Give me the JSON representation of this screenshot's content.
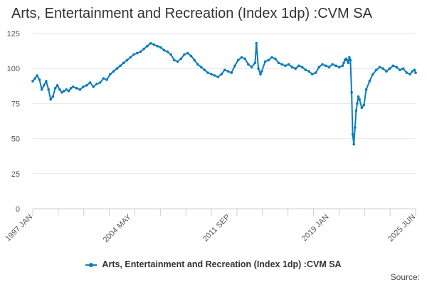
{
  "chart_data": {
    "type": "line",
    "title": "Arts, Entertainment and Recreation (Index 1dp) :CVM SA",
    "xlabel": "",
    "ylabel": "",
    "ylim": [
      0,
      125
    ],
    "y_ticks": [
      0,
      25,
      50,
      75,
      100,
      125
    ],
    "x_ticks": [
      {
        "label": "1997 JAN",
        "t": 1997.0
      },
      {
        "label": "2004 MAY",
        "t": 2004.333
      },
      {
        "label": "2011 SEP",
        "t": 2011.667
      },
      {
        "label": "2019 JAN",
        "t": 2019.0
      },
      {
        "label": "2025 JUN",
        "t": 2025.417
      }
    ],
    "xlim": [
      1997.0,
      2025.417
    ],
    "grid": true,
    "legend": "bottom-center",
    "series": [
      {
        "name": "Arts, Entertainment and Recreation (Index 1dp) :CVM SA",
        "color": "#0a7cbe",
        "x": [
          1997.0,
          1997.17,
          1997.33,
          1997.5,
          1997.67,
          1997.83,
          1998.0,
          1998.17,
          1998.33,
          1998.5,
          1998.67,
          1998.83,
          1999.0,
          1999.17,
          1999.33,
          1999.5,
          1999.67,
          1999.83,
          2000.0,
          2000.25,
          2000.5,
          2000.75,
          2001.0,
          2001.25,
          2001.5,
          2001.75,
          2002.0,
          2002.25,
          2002.5,
          2002.75,
          2003.0,
          2003.25,
          2003.5,
          2003.75,
          2004.0,
          2004.25,
          2004.5,
          2004.75,
          2005.0,
          2005.25,
          2005.5,
          2005.75,
          2006.0,
          2006.25,
          2006.5,
          2006.75,
          2007.0,
          2007.25,
          2007.5,
          2007.75,
          2008.0,
          2008.25,
          2008.5,
          2008.75,
          2009.0,
          2009.25,
          2009.5,
          2009.75,
          2010.0,
          2010.25,
          2010.5,
          2010.75,
          2011.0,
          2011.25,
          2011.5,
          2011.75,
          2012.0,
          2012.25,
          2012.5,
          2012.75,
          2013.0,
          2013.25,
          2013.5,
          2013.6,
          2013.75,
          2013.9,
          2014.0,
          2014.25,
          2014.5,
          2014.75,
          2015.0,
          2015.25,
          2015.5,
          2015.75,
          2016.0,
          2016.25,
          2016.5,
          2016.75,
          2017.0,
          2017.25,
          2017.5,
          2017.75,
          2018.0,
          2018.25,
          2018.5,
          2018.75,
          2019.0,
          2019.25,
          2019.5,
          2019.75,
          2020.0,
          2020.08,
          2020.17,
          2020.25,
          2020.33,
          2020.42,
          2020.5,
          2020.58,
          2020.67,
          2020.75,
          2020.83,
          2020.92,
          2021.0,
          2021.08,
          2021.17,
          2021.25,
          2021.42,
          2021.58,
          2021.75,
          2022.0,
          2022.25,
          2022.5,
          2022.75,
          2023.0,
          2023.25,
          2023.5,
          2023.75,
          2024.0,
          2024.25,
          2024.5,
          2024.75,
          2025.0,
          2025.17,
          2025.33,
          2025.417
        ],
        "values": [
          91,
          93,
          95,
          92,
          85,
          88,
          91,
          85,
          78,
          80,
          86,
          88,
          85,
          83,
          84,
          85,
          84,
          86,
          87,
          86,
          85,
          87,
          88,
          90,
          87,
          89,
          90,
          93,
          92,
          96,
          98,
          100,
          102,
          104,
          106,
          108,
          110,
          111,
          112,
          114,
          116,
          118,
          117,
          116,
          115,
          113,
          112,
          110,
          106,
          105,
          107,
          110,
          111,
          109,
          106,
          103,
          101,
          99,
          97,
          96,
          95,
          94,
          96,
          99,
          98,
          97,
          102,
          106,
          108,
          107,
          103,
          101,
          104,
          118,
          100,
          96,
          98,
          105,
          106,
          108,
          107,
          104,
          103,
          102,
          103,
          101,
          100,
          102,
          101,
          99,
          98,
          96,
          97,
          101,
          103,
          102,
          101,
          103,
          102,
          101,
          102,
          104,
          106,
          107,
          106,
          104,
          108,
          106,
          83,
          53,
          46,
          58,
          70,
          75,
          80,
          78,
          72,
          74,
          85,
          91,
          96,
          99,
          101,
          100,
          98,
          100,
          102,
          101,
          99,
          100,
          97,
          96,
          98,
          99,
          97
        ]
      }
    ]
  },
  "source_label": "Source:"
}
